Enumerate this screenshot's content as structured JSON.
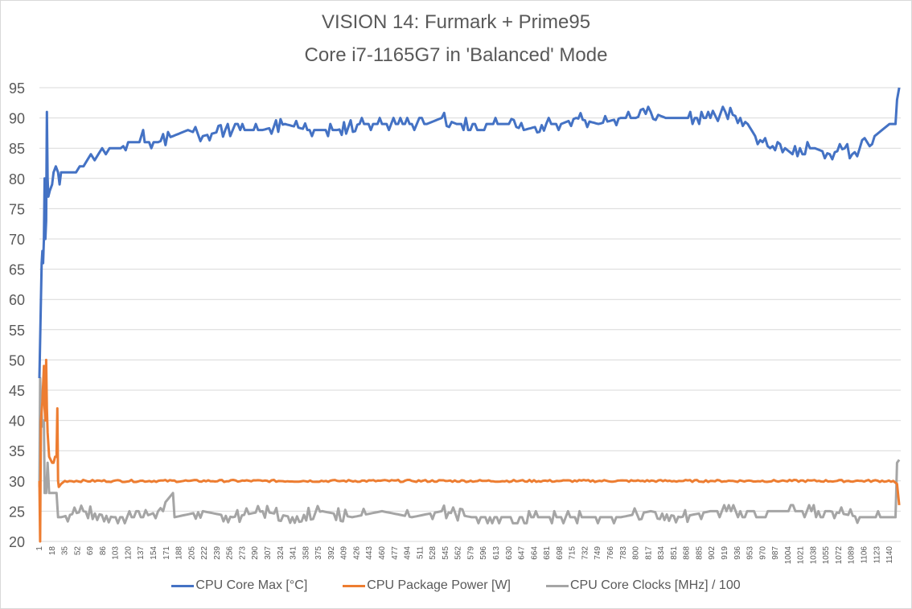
{
  "chart_data": {
    "type": "line",
    "title": "VISION 14: Furmark + Prime95",
    "subtitle": "Core i7-1165G7 in 'Balanced' Mode",
    "xlabel": "",
    "ylabel": "",
    "ylim": [
      20,
      95
    ],
    "yticks": [
      20,
      25,
      30,
      35,
      40,
      45,
      50,
      55,
      60,
      65,
      70,
      75,
      80,
      85,
      90,
      95
    ],
    "xticks": [
      1,
      18,
      35,
      52,
      69,
      86,
      103,
      120,
      137,
      154,
      171,
      188,
      205,
      222,
      239,
      256,
      273,
      290,
      307,
      324,
      341,
      358,
      375,
      392,
      409,
      426,
      443,
      460,
      477,
      494,
      511,
      528,
      545,
      562,
      579,
      596,
      613,
      630,
      647,
      664,
      681,
      698,
      715,
      732,
      749,
      766,
      783,
      800,
      817,
      834,
      851,
      868,
      885,
      902,
      919,
      936,
      953,
      970,
      987,
      1004,
      1021,
      1038,
      1055,
      1072,
      1089,
      1106,
      1123,
      1140
    ],
    "x_max": 1155,
    "grid": true,
    "legend_position": "bottom",
    "series": [
      {
        "name": "CPU Core Max [°C]",
        "color": "#4472c4",
        "points": [
          [
            1,
            47
          ],
          [
            3,
            60
          ],
          [
            4,
            66
          ],
          [
            5,
            68
          ],
          [
            6,
            66
          ],
          [
            7,
            70
          ],
          [
            8,
            80
          ],
          [
            9,
            70
          ],
          [
            10,
            73
          ],
          [
            11,
            91
          ],
          [
            12,
            80
          ],
          [
            13,
            77
          ],
          [
            15,
            78
          ],
          [
            18,
            79
          ],
          [
            20,
            81
          ],
          [
            23,
            82
          ],
          [
            26,
            81
          ],
          [
            28,
            79
          ],
          [
            30,
            81
          ],
          [
            35,
            81
          ],
          [
            40,
            81
          ],
          [
            50,
            81
          ],
          [
            55,
            82
          ],
          [
            60,
            82
          ],
          [
            65,
            83
          ],
          [
            70,
            84
          ],
          [
            75,
            83
          ],
          [
            80,
            84
          ],
          [
            85,
            85
          ],
          [
            90,
            84
          ],
          [
            95,
            85
          ],
          [
            100,
            85
          ],
          [
            110,
            85
          ],
          [
            120,
            86
          ],
          [
            135,
            86
          ],
          [
            140,
            88
          ],
          [
            142,
            86
          ],
          [
            160,
            86
          ],
          [
            180,
            87
          ],
          [
            200,
            88
          ],
          [
            220,
            87
          ],
          [
            250,
            88
          ],
          [
            270,
            88
          ],
          [
            300,
            88
          ],
          [
            330,
            89
          ],
          [
            360,
            88
          ],
          [
            400,
            88
          ],
          [
            430,
            89
          ],
          [
            460,
            89
          ],
          [
            500,
            89
          ],
          [
            520,
            89
          ],
          [
            540,
            90
          ],
          [
            560,
            89
          ],
          [
            600,
            89
          ],
          [
            630,
            89
          ],
          [
            650,
            88
          ],
          [
            680,
            89
          ],
          [
            700,
            89
          ],
          [
            720,
            90
          ],
          [
            750,
            89
          ],
          [
            780,
            90
          ],
          [
            800,
            90
          ],
          [
            820,
            91
          ],
          [
            840,
            90
          ],
          [
            870,
            90
          ],
          [
            900,
            90
          ],
          [
            920,
            91
          ],
          [
            940,
            90
          ],
          [
            950,
            89
          ],
          [
            960,
            87
          ],
          [
            970,
            86
          ],
          [
            980,
            85
          ],
          [
            990,
            86
          ],
          [
            1000,
            85
          ],
          [
            1010,
            84
          ],
          [
            1020,
            85
          ],
          [
            1040,
            85
          ],
          [
            1060,
            84
          ],
          [
            1080,
            85
          ],
          [
            1090,
            84
          ],
          [
            1100,
            85
          ],
          [
            1110,
            86
          ],
          [
            1120,
            87
          ],
          [
            1130,
            88
          ],
          [
            1140,
            89
          ],
          [
            1148,
            89
          ],
          [
            1150,
            93
          ],
          [
            1153,
            95
          ]
        ]
      },
      {
        "name": "CPU Package Power [W]",
        "color": "#ed7d31",
        "points": [
          [
            1,
            30
          ],
          [
            2,
            20
          ],
          [
            3,
            40
          ],
          [
            5,
            43
          ],
          [
            7,
            49
          ],
          [
            8,
            42
          ],
          [
            9,
            40
          ],
          [
            10,
            50
          ],
          [
            11,
            42
          ],
          [
            12,
            38
          ],
          [
            14,
            34
          ],
          [
            18,
            33
          ],
          [
            20,
            33
          ],
          [
            22,
            34
          ],
          [
            24,
            34
          ],
          [
            25,
            42
          ],
          [
            26,
            30
          ],
          [
            27,
            29
          ],
          [
            30,
            29.5
          ],
          [
            35,
            30
          ],
          [
            100,
            30
          ],
          [
            200,
            30
          ],
          [
            300,
            30
          ],
          [
            400,
            30
          ],
          [
            500,
            30
          ],
          [
            600,
            30
          ],
          [
            700,
            30
          ],
          [
            800,
            30
          ],
          [
            900,
            30
          ],
          [
            1000,
            30
          ],
          [
            1100,
            30
          ],
          [
            1145,
            30
          ],
          [
            1150,
            29.5
          ],
          [
            1153,
            26
          ]
        ]
      },
      {
        "name": "CPU Core Clocks [MHz] / 100",
        "color": "#a5a5a5",
        "points": [
          [
            1,
            29
          ],
          [
            2,
            47
          ],
          [
            3,
            43
          ],
          [
            5,
            39
          ],
          [
            7,
            40
          ],
          [
            8,
            28
          ],
          [
            10,
            28
          ],
          [
            12,
            33
          ],
          [
            14,
            28
          ],
          [
            20,
            28
          ],
          [
            24,
            28
          ],
          [
            26,
            24
          ],
          [
            30,
            24
          ],
          [
            60,
            25
          ],
          [
            100,
            24
          ],
          [
            140,
            24
          ],
          [
            160,
            25
          ],
          [
            180,
            28
          ],
          [
            182,
            24
          ],
          [
            220,
            25
          ],
          [
            260,
            24
          ],
          [
            300,
            25
          ],
          [
            340,
            24
          ],
          [
            380,
            25
          ],
          [
            420,
            24
          ],
          [
            460,
            25
          ],
          [
            500,
            24
          ],
          [
            540,
            25
          ],
          [
            580,
            24
          ],
          [
            620,
            24
          ],
          [
            660,
            24
          ],
          [
            700,
            24
          ],
          [
            740,
            24
          ],
          [
            780,
            24
          ],
          [
            820,
            25
          ],
          [
            860,
            24
          ],
          [
            900,
            25
          ],
          [
            940,
            25
          ],
          [
            980,
            25
          ],
          [
            1020,
            25
          ],
          [
            1060,
            25
          ],
          [
            1100,
            24
          ],
          [
            1140,
            24
          ],
          [
            1148,
            24
          ],
          [
            1150,
            33
          ],
          [
            1153,
            33.5
          ]
        ]
      }
    ]
  },
  "title": {
    "line1": "VISION 14: Furmark + Prime95",
    "line2": "Core i7-1165G7 in 'Balanced' Mode"
  },
  "legend": [
    {
      "label": "CPU Core Max [°C]",
      "color": "#4472c4"
    },
    {
      "label": "CPU Package Power [W]",
      "color": "#ed7d31"
    },
    {
      "label": "CPU Core Clocks [MHz] / 100",
      "color": "#a5a5a5"
    }
  ]
}
